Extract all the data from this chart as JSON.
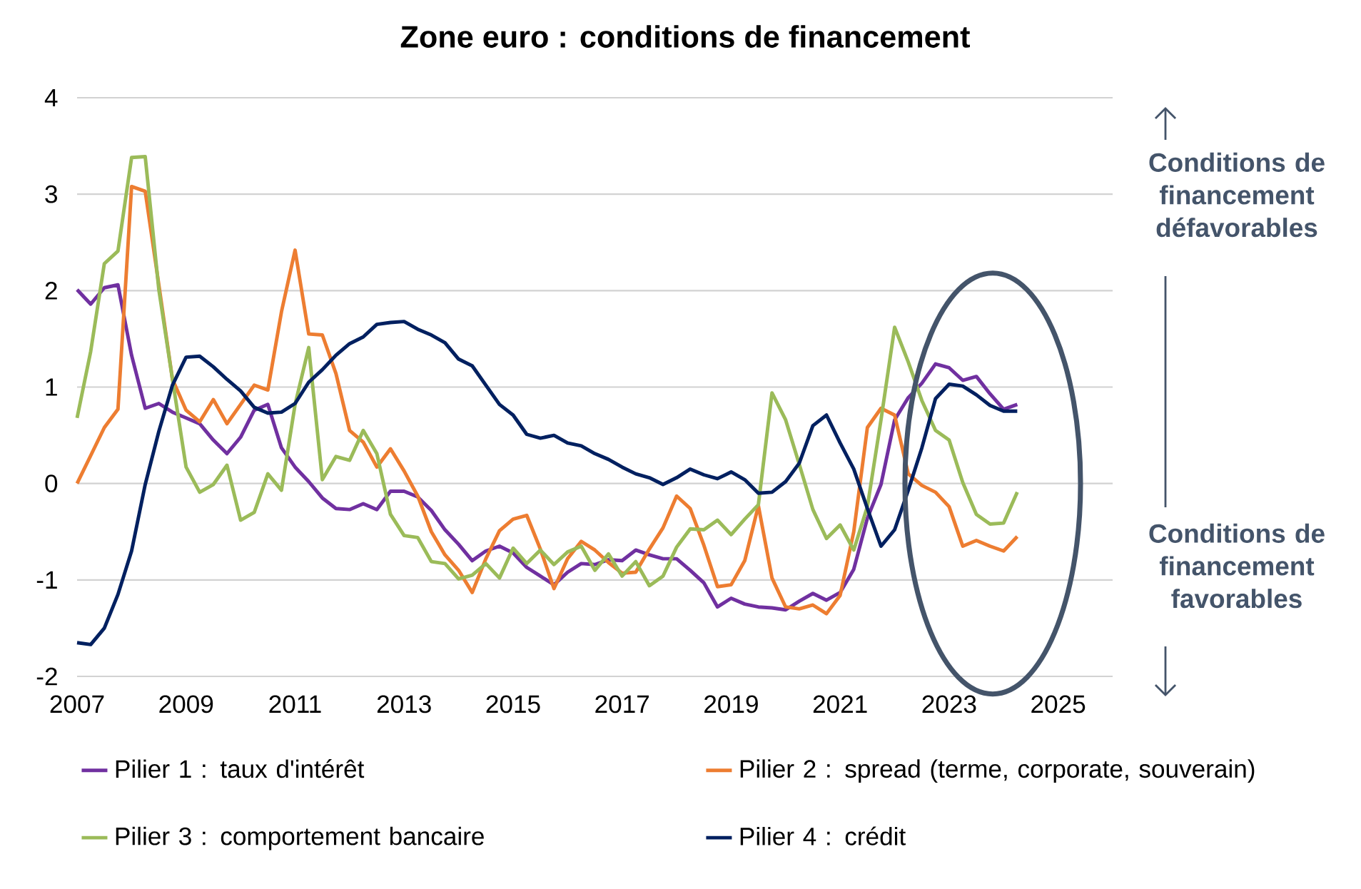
{
  "chart_data": {
    "type": "line",
    "title": "Zone euro : conditions de financement",
    "x": [
      2007,
      2007.25,
      2007.5,
      2007.75,
      2008,
      2008.25,
      2008.5,
      2008.75,
      2009,
      2009.25,
      2009.5,
      2009.75,
      2010,
      2010.25,
      2010.5,
      2010.75,
      2011,
      2011.25,
      2011.5,
      2011.75,
      2012,
      2012.25,
      2012.5,
      2012.75,
      2013,
      2013.25,
      2013.5,
      2013.75,
      2014,
      2014.25,
      2014.5,
      2014.75,
      2015,
      2015.25,
      2015.5,
      2015.75,
      2016,
      2016.25,
      2016.5,
      2016.75,
      2017,
      2017.25,
      2017.5,
      2017.75,
      2018,
      2018.25,
      2018.5,
      2018.75,
      2019,
      2019.25,
      2019.5,
      2019.75,
      2020,
      2020.25,
      2020.5,
      2020.75,
      2021,
      2021.25,
      2021.5,
      2021.75,
      2022,
      2022.25,
      2022.5,
      2022.75,
      2023,
      2023.25,
      2023.5,
      2023.75,
      2024,
      2024.25
    ],
    "series": [
      {
        "name": "Pilier 1 : taux d'intérêt",
        "color": "#7030a0",
        "values": [
          2.01,
          1.86,
          2.03,
          2.06,
          1.33,
          0.78,
          0.83,
          0.74,
          0.68,
          0.62,
          0.45,
          0.31,
          0.48,
          0.76,
          0.82,
          0.37,
          0.17,
          0.02,
          -0.15,
          -0.26,
          -0.27,
          -0.21,
          -0.27,
          -0.08,
          -0.08,
          -0.14,
          -0.28,
          -0.48,
          -0.63,
          -0.8,
          -0.7,
          -0.65,
          -0.72,
          -0.87,
          -0.96,
          -1.05,
          -0.92,
          -0.83,
          -0.84,
          -0.79,
          -0.8,
          -0.69,
          -0.74,
          -0.78,
          -0.78,
          -0.9,
          -1.03,
          -1.28,
          -1.19,
          -1.25,
          -1.28,
          -1.29,
          -1.31,
          -1.22,
          -1.14,
          -1.21,
          -1.13,
          -0.89,
          -0.36,
          -0.01,
          0.66,
          0.89,
          1.04,
          1.24,
          1.2,
          1.07,
          1.11,
          0.93,
          0.77,
          0.82
        ]
      },
      {
        "name": "Pilier 2 : spread (terme, corporate, souverain)",
        "color": "#ed7d31",
        "values": [
          0,
          0.29,
          0.58,
          0.77,
          3.08,
          3.03,
          2.06,
          1.08,
          0.76,
          0.64,
          0.87,
          0.62,
          0.82,
          1.02,
          0.97,
          1.78,
          2.42,
          1.55,
          1.54,
          1.14,
          0.55,
          0.43,
          0.17,
          0.36,
          0.13,
          -0.13,
          -0.5,
          -0.74,
          -0.9,
          -1.13,
          -0.78,
          -0.49,
          -0.37,
          -0.33,
          -0.68,
          -1.09,
          -0.78,
          -0.6,
          -0.69,
          -0.82,
          -0.93,
          -0.92,
          -0.68,
          -0.46,
          -0.13,
          -0.26,
          -0.64,
          -1.07,
          -1.05,
          -0.8,
          -0.23,
          -0.98,
          -1.28,
          -1.3,
          -1.26,
          -1.35,
          -1.16,
          -0.5,
          0.58,
          0.78,
          0.71,
          0.1,
          -0.02,
          -0.09,
          -0.24,
          -0.65,
          -0.59,
          -0.65,
          -0.7,
          -0.55
        ]
      },
      {
        "name": "Pilier 3 : comportement bancaire",
        "color": "#9bbb59",
        "values": [
          0.68,
          1.37,
          2.28,
          2.41,
          3.38,
          3.39,
          2.01,
          1.08,
          0.17,
          -0.09,
          -0.01,
          0.19,
          -0.38,
          -0.3,
          0.1,
          -0.07,
          0.82,
          1.41,
          0.04,
          0.28,
          0.24,
          0.55,
          0.31,
          -0.32,
          -0.54,
          -0.56,
          -0.81,
          -0.83,
          -0.99,
          -0.95,
          -0.83,
          -0.98,
          -0.67,
          -0.83,
          -0.69,
          -0.84,
          -0.71,
          -0.65,
          -0.9,
          -0.73,
          -0.96,
          -0.81,
          -1.06,
          -0.96,
          -0.66,
          -0.47,
          -0.48,
          -0.38,
          -0.53,
          -0.37,
          -0.22,
          0.94,
          0.66,
          0.2,
          -0.27,
          -0.57,
          -0.43,
          -0.69,
          -0.24,
          0.66,
          1.62,
          1.26,
          0.86,
          0.55,
          0.45,
          0.01,
          -0.32,
          -0.42,
          -0.41,
          -0.09
        ]
      },
      {
        "name": "Pilier 4 : crédit",
        "color": "#002060",
        "values": [
          -1.65,
          -1.67,
          -1.5,
          -1.15,
          -0.7,
          -0.01,
          0.54,
          1.02,
          1.31,
          1.32,
          1.21,
          1.08,
          0.96,
          0.79,
          0.73,
          0.74,
          0.83,
          1.05,
          1.18,
          1.33,
          1.45,
          1.52,
          1.65,
          1.67,
          1.68,
          1.6,
          1.54,
          1.46,
          1.29,
          1.22,
          1.02,
          0.82,
          0.71,
          0.51,
          0.47,
          0.5,
          0.42,
          0.39,
          0.31,
          0.25,
          0.17,
          0.1,
          0.06,
          -0.01,
          0.06,
          0.15,
          0.09,
          0.05,
          0.12,
          0.04,
          -0.1,
          -0.09,
          0.02,
          0.21,
          0.6,
          0.71,
          0.42,
          0.15,
          -0.26,
          -0.65,
          -0.48,
          -0.07,
          0.37,
          0.88,
          1.03,
          1.01,
          0.92,
          0.81,
          0.75,
          0.75
        ]
      }
    ],
    "xlim": [
      2007,
      2026
    ],
    "xticks": [
      2007,
      2009,
      2011,
      2013,
      2015,
      2017,
      2019,
      2021,
      2023,
      2025
    ],
    "ylim": [
      -2,
      4
    ],
    "yticks": [
      -2,
      -1,
      0,
      1,
      2,
      3,
      4
    ],
    "grid": "y",
    "legend": "bottom",
    "annotations": [
      "Conditions de financement défavorables",
      "Conditions de financement favorables"
    ]
  }
}
